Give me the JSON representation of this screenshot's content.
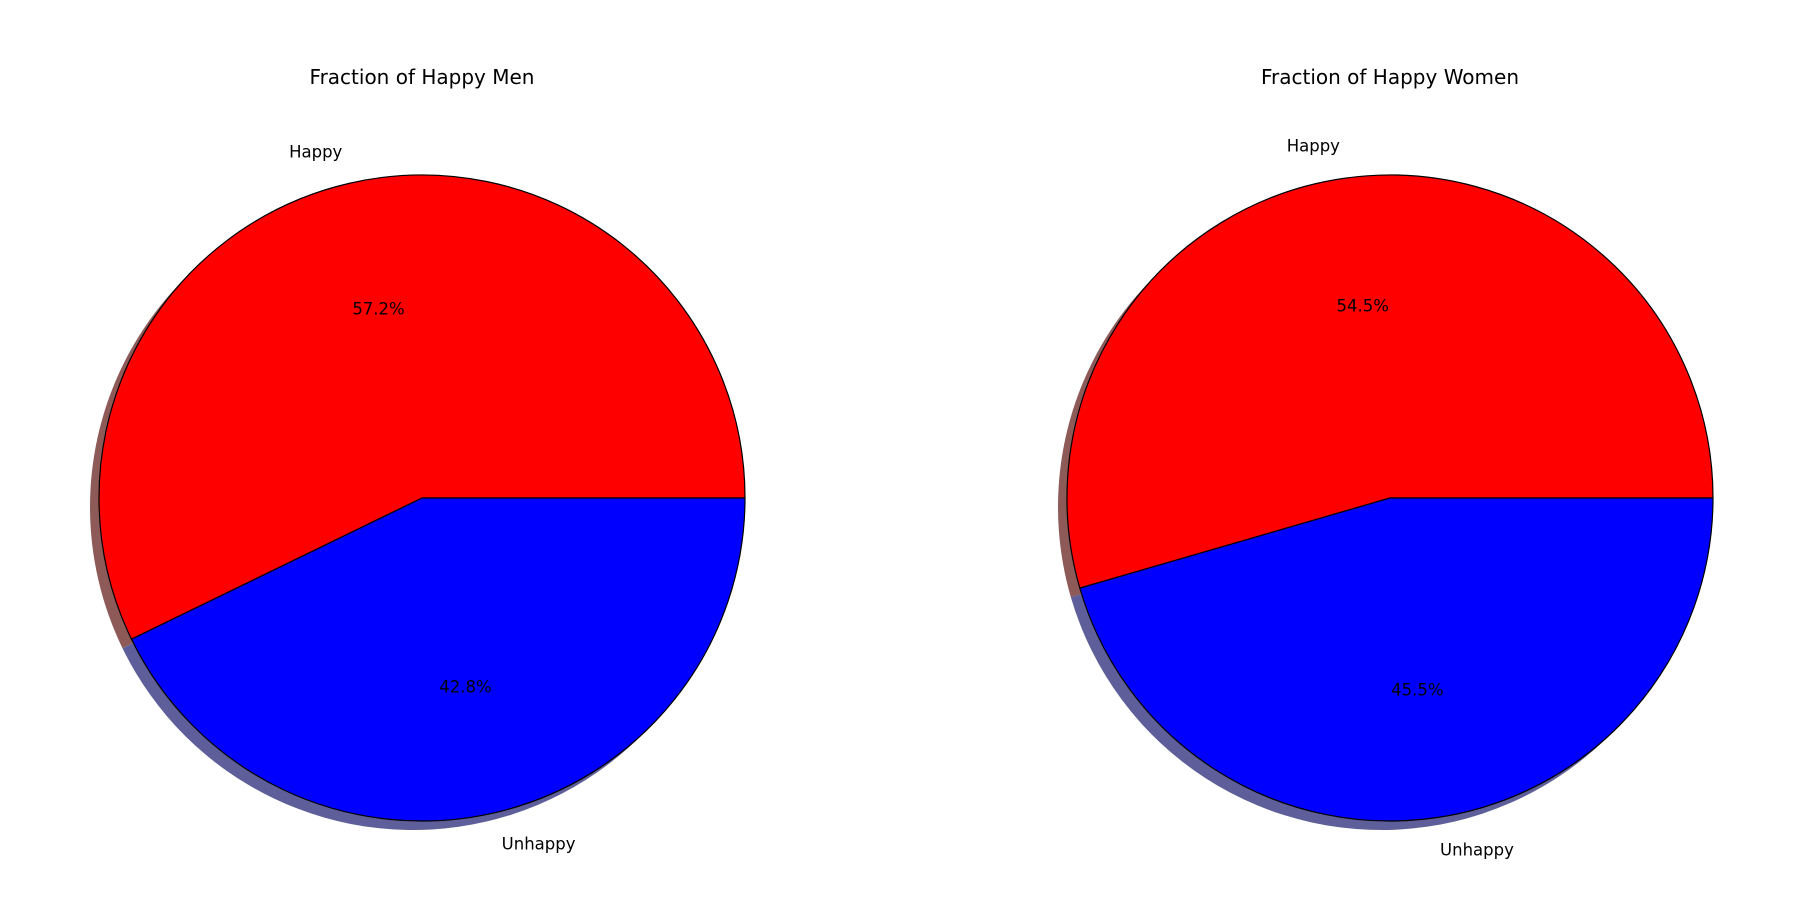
{
  "chart_data": [
    {
      "type": "pie",
      "title": "Fraction of Happy Men",
      "categories": [
        "Happy",
        "Unhappy"
      ],
      "values": [
        57.2,
        42.8
      ],
      "pct_labels": [
        "57.2%",
        "42.8%"
      ],
      "colors": [
        "#ff0000",
        "#0000ff"
      ],
      "start_angle_deg": 0,
      "direction": "counterclockwise",
      "shadow": true,
      "edge_color": "#000000"
    },
    {
      "type": "pie",
      "title": "Fraction of Happy Women",
      "categories": [
        "Happy",
        "Unhappy"
      ],
      "values": [
        54.5,
        45.5
      ],
      "pct_labels": [
        "54.5%",
        "45.5%"
      ],
      "colors": [
        "#ff0000",
        "#0000ff"
      ],
      "start_angle_deg": 0,
      "direction": "counterclockwise",
      "shadow": true,
      "edge_color": "#000000"
    }
  ]
}
